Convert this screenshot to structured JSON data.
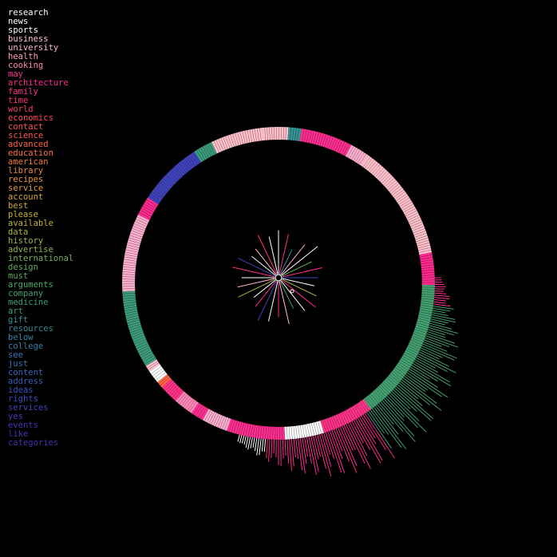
{
  "chart_data": {
    "type": "radial",
    "legend": [
      {
        "label": "research",
        "color": "#ffffff"
      },
      {
        "label": "news",
        "color": "#ffffff"
      },
      {
        "label": "sports",
        "color": "#ffffff"
      },
      {
        "label": "business",
        "color": "#ffc0cb"
      },
      {
        "label": "university",
        "color": "#ffb0d0"
      },
      {
        "label": "health",
        "color": "#ff99c8"
      },
      {
        "label": "cooking",
        "color": "#ff88bb"
      },
      {
        "label": "may",
        "color": "#ff2f92"
      },
      {
        "label": "architecture",
        "color": "#ff2a8f"
      },
      {
        "label": "family",
        "color": "#ff3388"
      },
      {
        "label": "time",
        "color": "#ff3377"
      },
      {
        "label": "world",
        "color": "#ff3d66"
      },
      {
        "label": "economics",
        "color": "#ff4a5a"
      },
      {
        "label": "contact",
        "color": "#ff5252"
      },
      {
        "label": "science",
        "color": "#ff5a4a"
      },
      {
        "label": "advanced",
        "color": "#ff6644"
      },
      {
        "label": "education",
        "color": "#ff7340"
      },
      {
        "label": "american",
        "color": "#f07a3a"
      },
      {
        "label": "library",
        "color": "#e8883a"
      },
      {
        "label": "recipes",
        "color": "#e89238"
      },
      {
        "label": "service",
        "color": "#e09a38"
      },
      {
        "label": "account",
        "color": "#d8a038"
      },
      {
        "label": "best",
        "color": "#d0a838"
      },
      {
        "label": "please",
        "color": "#c8ae38"
      },
      {
        "label": "available",
        "color": "#bcb238"
      },
      {
        "label": "data",
        "color": "#b0b440"
      },
      {
        "label": "history",
        "color": "#a0b448"
      },
      {
        "label": "advertise",
        "color": "#90b450"
      },
      {
        "label": "international",
        "color": "#78b058"
      },
      {
        "label": "design",
        "color": "#66aa5c"
      },
      {
        "label": "must",
        "color": "#5aa860"
      },
      {
        "label": "arguments",
        "color": "#4ea868"
      },
      {
        "label": "company",
        "color": "#44a070"
      },
      {
        "label": "medicine",
        "color": "#3c9c7c"
      },
      {
        "label": "art",
        "color": "#389888"
      },
      {
        "label": "gift",
        "color": "#369494"
      },
      {
        "label": "resources",
        "color": "#348c9c"
      },
      {
        "label": "below",
        "color": "#3488a4"
      },
      {
        "label": "college",
        "color": "#3480ac"
      },
      {
        "label": "see",
        "color": "#3478b4"
      },
      {
        "label": "just",
        "color": "#3670b8"
      },
      {
        "label": "content",
        "color": "#3866bc"
      },
      {
        "label": "address",
        "color": "#3a5cc0"
      },
      {
        "label": "ideas",
        "color": "#3c54c0"
      },
      {
        "label": "rights",
        "color": "#3e4cc0"
      },
      {
        "label": "services",
        "color": "#4044bc"
      },
      {
        "label": "yes",
        "color": "#423cb8"
      },
      {
        "label": "events",
        "color": "#4438b4"
      },
      {
        "label": "like",
        "color": "#4634b0"
      },
      {
        "label": "categories",
        "color": "#4830ac"
      }
    ],
    "ring_segments": [
      {
        "category": "business",
        "share": 4
      },
      {
        "category": "gift",
        "share": 2
      },
      {
        "category": "may",
        "share": 8
      },
      {
        "category": "university",
        "share": 3
      },
      {
        "category": "business",
        "share": 18
      },
      {
        "category": "architecture",
        "share": 5
      },
      {
        "category": "company",
        "share": 22
      },
      {
        "category": "family",
        "share": 8
      },
      {
        "category": "research",
        "share": 6
      },
      {
        "category": "may",
        "share": 9
      },
      {
        "category": "university",
        "share": 4
      },
      {
        "category": "may",
        "share": 2
      },
      {
        "category": "cooking",
        "share": 3
      },
      {
        "category": "family",
        "share": 3
      },
      {
        "category": "advanced",
        "share": 1
      },
      {
        "category": "research",
        "share": 2
      },
      {
        "category": "business",
        "share": 1
      },
      {
        "category": "medicine",
        "share": 12
      },
      {
        "category": "university",
        "share": 12
      },
      {
        "category": "architecture",
        "share": 3
      },
      {
        "category": "services",
        "share": 10
      },
      {
        "category": "medicine",
        "share": 3
      },
      {
        "category": "business",
        "share": 8
      }
    ],
    "spokes": [
      {
        "category": "research",
        "weight": 0.9
      },
      {
        "category": "may",
        "weight": 0.85
      },
      {
        "category": "gift",
        "weight": 0.6
      },
      {
        "category": "university",
        "weight": 0.8
      },
      {
        "category": "research",
        "weight": 0.95
      },
      {
        "category": "design",
        "weight": 0.7
      },
      {
        "category": "may",
        "weight": 0.85
      },
      {
        "category": "services",
        "weight": 0.75
      },
      {
        "category": "research",
        "weight": 0.7
      },
      {
        "category": "available",
        "weight": 0.8
      },
      {
        "category": "may",
        "weight": 0.9
      },
      {
        "category": "research",
        "weight": 0.8
      },
      {
        "category": "medicine",
        "weight": 0.65
      },
      {
        "category": "business",
        "weight": 0.9
      },
      {
        "category": "architecture",
        "weight": 0.75
      },
      {
        "category": "research",
        "weight": 0.85
      },
      {
        "category": "services",
        "weight": 0.9
      },
      {
        "category": "may",
        "weight": 0.7
      },
      {
        "category": "research",
        "weight": 0.6
      },
      {
        "category": "data",
        "weight": 0.85
      },
      {
        "category": "university",
        "weight": 0.8
      },
      {
        "category": "research",
        "weight": 0.7
      },
      {
        "category": "may",
        "weight": 0.9
      },
      {
        "category": "services",
        "weight": 0.85
      },
      {
        "category": "research",
        "weight": 0.65
      },
      {
        "category": "business",
        "weight": 0.7
      },
      {
        "category": "architecture",
        "weight": 0.9
      },
      {
        "category": "research",
        "weight": 0.8
      }
    ]
  }
}
